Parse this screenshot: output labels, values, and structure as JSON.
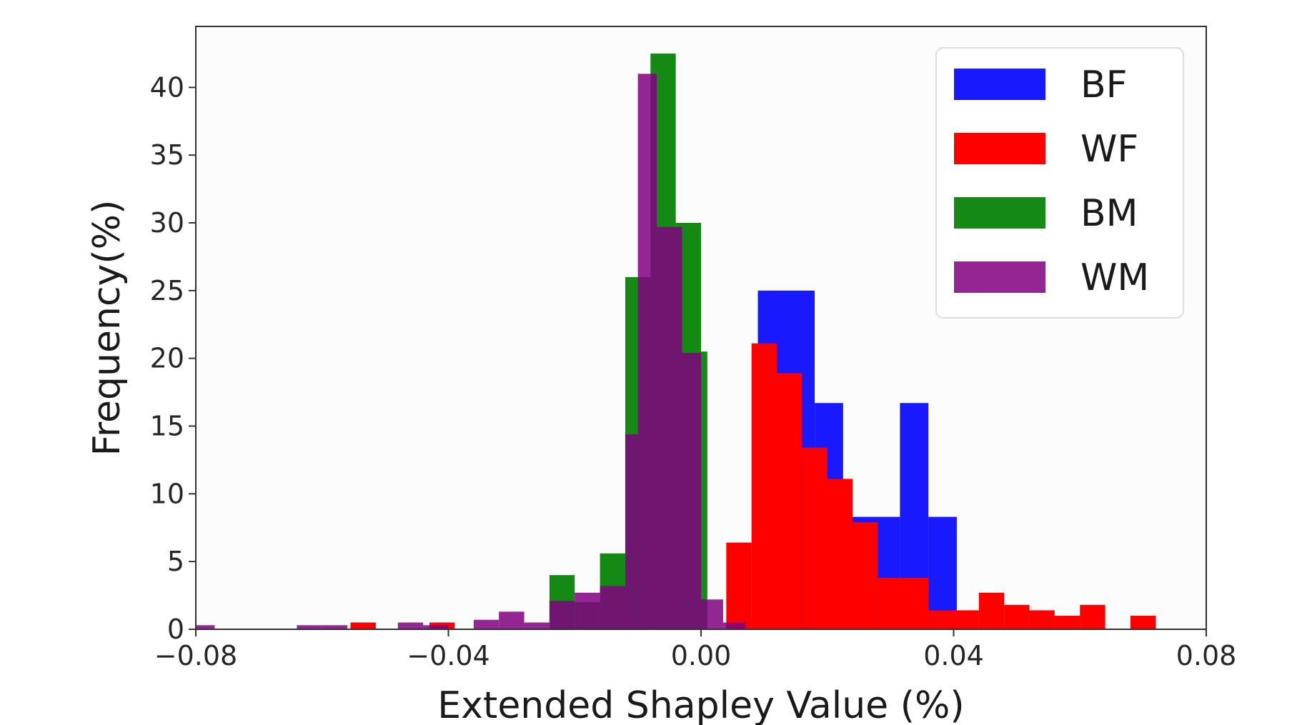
{
  "chart_data": {
    "type": "bar",
    "xlabel": "Extended Shapley Value (%)",
    "ylabel": "Frequency(%)",
    "xlim": [
      -0.08,
      0.08
    ],
    "ylim": [
      0,
      44.5
    ],
    "x_ticks": [
      -0.08,
      -0.04,
      0.0,
      0.04,
      0.08
    ],
    "x_tick_labels": [
      "−0.08",
      "−0.04",
      "0.00",
      "0.04",
      "0.08"
    ],
    "y_ticks": [
      0,
      5,
      10,
      15,
      20,
      25,
      30,
      35,
      40
    ],
    "y_tick_labels": [
      "0",
      "5",
      "10",
      "15",
      "20",
      "25",
      "30",
      "35",
      "40"
    ],
    "grid": false,
    "legend_placement": "top-right",
    "series": [
      {
        "name": "BF",
        "color": "#0000ff",
        "opacity": 0.9,
        "bins": [
          {
            "x0": 0.009,
            "x1": 0.018,
            "value": 25.0
          },
          {
            "x0": 0.018,
            "x1": 0.0225,
            "value": 16.7
          },
          {
            "x0": 0.0225,
            "x1": 0.0315,
            "value": 8.3
          },
          {
            "x0": 0.0315,
            "x1": 0.036,
            "value": 16.7
          },
          {
            "x0": 0.036,
            "x1": 0.0405,
            "value": 8.3
          }
        ]
      },
      {
        "name": "WF",
        "color": "#ff0000",
        "opacity": 1.0,
        "bins": [
          {
            "x0": -0.0555,
            "x1": -0.0515,
            "value": 0.5
          },
          {
            "x0": -0.043,
            "x1": -0.039,
            "value": 0.5
          },
          {
            "x0": 0.004,
            "x1": 0.008,
            "value": 6.4
          },
          {
            "x0": 0.008,
            "x1": 0.012,
            "value": 21.1
          },
          {
            "x0": 0.012,
            "x1": 0.016,
            "value": 18.9
          },
          {
            "x0": 0.016,
            "x1": 0.02,
            "value": 13.4
          },
          {
            "x0": 0.02,
            "x1": 0.024,
            "value": 11.1
          },
          {
            "x0": 0.024,
            "x1": 0.028,
            "value": 7.9
          },
          {
            "x0": 0.028,
            "x1": 0.032,
            "value": 3.8
          },
          {
            "x0": 0.032,
            "x1": 0.036,
            "value": 3.8
          },
          {
            "x0": 0.036,
            "x1": 0.04,
            "value": 1.4
          },
          {
            "x0": 0.04,
            "x1": 0.044,
            "value": 1.4
          },
          {
            "x0": 0.044,
            "x1": 0.048,
            "value": 2.7
          },
          {
            "x0": 0.048,
            "x1": 0.052,
            "value": 1.8
          },
          {
            "x0": 0.052,
            "x1": 0.056,
            "value": 1.4
          },
          {
            "x0": 0.056,
            "x1": 0.06,
            "value": 1.0
          },
          {
            "x0": 0.06,
            "x1": 0.064,
            "value": 1.8
          },
          {
            "x0": 0.068,
            "x1": 0.072,
            "value": 1.0
          }
        ]
      },
      {
        "name": "BM",
        "color": "#008000",
        "opacity": 0.92,
        "bins": [
          {
            "x0": -0.024,
            "x1": -0.02,
            "value": 4.0
          },
          {
            "x0": -0.02,
            "x1": -0.016,
            "value": 2.0
          },
          {
            "x0": -0.016,
            "x1": -0.012,
            "value": 5.6
          },
          {
            "x0": -0.012,
            "x1": -0.008,
            "value": 26.0
          },
          {
            "x0": -0.008,
            "x1": -0.004,
            "value": 42.5
          },
          {
            "x0": -0.004,
            "x1": 0.0,
            "value": 30.0
          },
          {
            "x0": 0.0,
            "x1": 0.001,
            "value": 20.5
          }
        ]
      },
      {
        "name": "WM",
        "color": "#800080",
        "opacity": 0.85,
        "bins": [
          {
            "x0": -0.08,
            "x1": -0.077,
            "value": 0.3
          },
          {
            "x0": -0.064,
            "x1": -0.06,
            "value": 0.3
          },
          {
            "x0": -0.06,
            "x1": -0.056,
            "value": 0.3
          },
          {
            "x0": -0.048,
            "x1": -0.044,
            "value": 0.5
          },
          {
            "x0": -0.044,
            "x1": -0.04,
            "value": 0.3
          },
          {
            "x0": -0.036,
            "x1": -0.032,
            "value": 0.7
          },
          {
            "x0": -0.032,
            "x1": -0.028,
            "value": 1.3
          },
          {
            "x0": -0.028,
            "x1": -0.024,
            "value": 0.5
          },
          {
            "x0": -0.024,
            "x1": -0.02,
            "value": 2.1
          },
          {
            "x0": -0.02,
            "x1": -0.016,
            "value": 2.7
          },
          {
            "x0": -0.016,
            "x1": -0.012,
            "value": 3.2
          },
          {
            "x0": -0.012,
            "x1": -0.01,
            "value": 14.4
          },
          {
            "x0": -0.01,
            "x1": -0.007,
            "value": 41.0
          },
          {
            "x0": -0.007,
            "x1": -0.003,
            "value": 29.7
          },
          {
            "x0": -0.003,
            "x1": 0.0,
            "value": 20.4
          },
          {
            "x0": 0.0,
            "x1": 0.0035,
            "value": 2.2
          },
          {
            "x0": 0.0035,
            "x1": 0.007,
            "value": 0.5
          }
        ]
      }
    ]
  }
}
